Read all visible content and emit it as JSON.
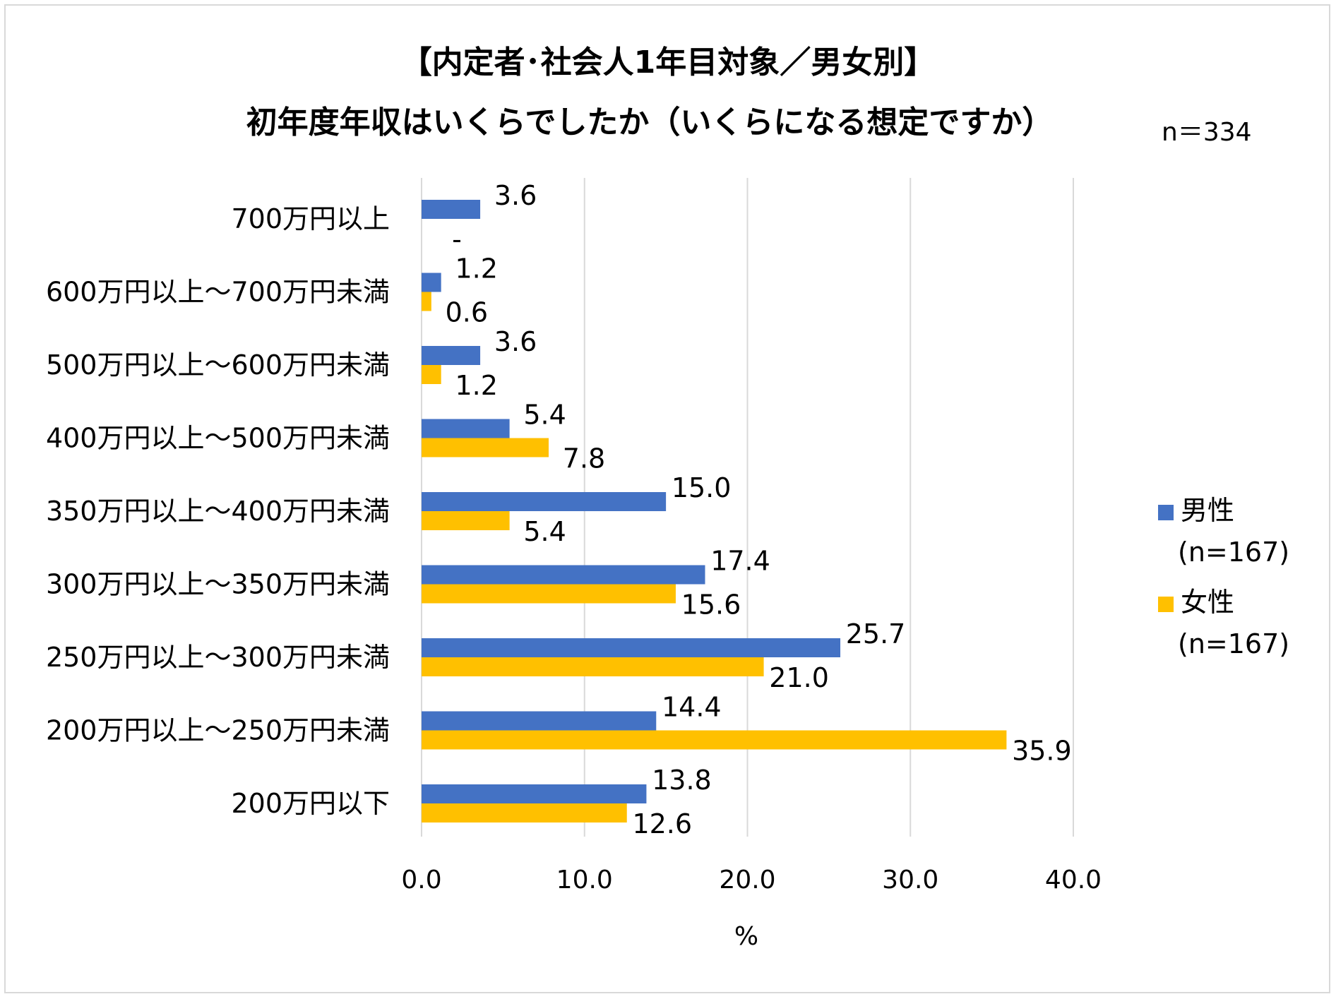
{
  "title_line1": "【内定者･社会人1年目対象／男女別】",
  "title_line2": "初年度年収はいくらでしたか（いくらになる想定ですか）",
  "sample_size": "n＝334",
  "chart_data": {
    "type": "bar",
    "orientation": "horizontal",
    "title": "【内定者･社会人1年目対象／男女別】初年度年収はいくらでしたか（いくらになる想定ですか）",
    "categories": [
      "700万円以上",
      "600万円以上～700万円未満",
      "500万円以上～600万円未満",
      "400万円以上～500万円未満",
      "350万円以上～400万円未満",
      "300万円以上～350万円未満",
      "250万円以上～300万円未満",
      "200万円以上～250万円未満",
      "200万円以下"
    ],
    "series": [
      {
        "name": "男性",
        "sub": "(n=167)",
        "color": "#4472C4",
        "values": [
          3.6,
          1.2,
          3.6,
          5.4,
          15.0,
          17.4,
          25.7,
          14.4,
          13.8
        ],
        "labels": [
          "3.6",
          "1.2",
          "3.6",
          "5.4",
          "15.0",
          "17.4",
          "25.7",
          "14.4",
          "13.8"
        ]
      },
      {
        "name": "女性",
        "sub": "(n=167)",
        "color": "#FFC000",
        "values": [
          0,
          0.6,
          1.2,
          7.8,
          5.4,
          15.6,
          21.0,
          35.9,
          12.6
        ],
        "labels": [
          "-",
          "0.6",
          "1.2",
          "7.8",
          "5.4",
          "15.6",
          "21.0",
          "35.9",
          "12.6"
        ]
      }
    ],
    "xlim": [
      0,
      40
    ],
    "xticks": [
      "0.0",
      "10.0",
      "20.0",
      "30.0",
      "40.0"
    ],
    "xlabel": "%",
    "grid": true,
    "legend_position": "right"
  }
}
